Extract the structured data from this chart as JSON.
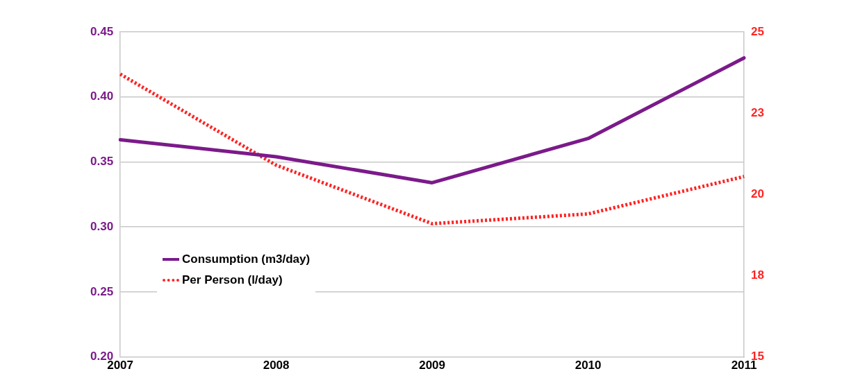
{
  "chart_data": {
    "type": "line",
    "categories": [
      "2007",
      "2008",
      "2009",
      "2010",
      "2011"
    ],
    "series": [
      {
        "name": "Consumption (m3/day)",
        "color": "#7b1a8a",
        "values": [
          0.367,
          0.354,
          0.334,
          0.368,
          0.43
        ]
      },
      {
        "name": "Per Person (l/day)",
        "color": "#ff2222",
        "values": [
          23.7,
          20.9,
          19.1,
          19.4,
          20.55
        ],
        "axis": "y2",
        "line_style": "dotted"
      }
    ],
    "ylim": [
      0.2,
      0.45
    ],
    "yticks": [
      {
        "value": 0.2,
        "label": "0.20"
      },
      {
        "value": 0.25,
        "label": "0.25"
      },
      {
        "value": 0.3,
        "label": "0.30"
      },
      {
        "value": 0.35,
        "label": "0.35"
      },
      {
        "value": 0.4,
        "label": "0.40"
      },
      {
        "value": 0.45,
        "label": "0.45"
      }
    ],
    "y2lim": [
      15,
      25
    ],
    "y2ticks": [
      15,
      {
        "value": 17.5,
        "label": "18"
      },
      20,
      {
        "value": 22.5,
        "label": "23"
      },
      25
    ],
    "grid": "y",
    "legend": "bottom left",
    "marker": "none"
  }
}
